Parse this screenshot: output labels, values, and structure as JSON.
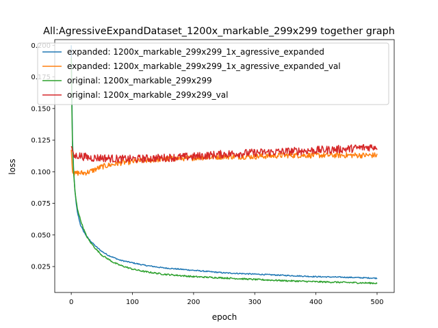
{
  "chart_data": {
    "type": "line",
    "title": "All:AgressiveExpandDataset_1200x_markable_299x299 together graph",
    "xlabel": "epoch",
    "ylabel": "loss",
    "xlim": [
      -27,
      528
    ],
    "ylim": [
      0.0045,
      0.2045
    ],
    "xticks": [
      0,
      100,
      200,
      300,
      400,
      500
    ],
    "xtick_labels": [
      "0",
      "100",
      "200",
      "300",
      "400",
      "500"
    ],
    "yticks": [
      0.025,
      0.05,
      0.075,
      0.1,
      0.125,
      0.15,
      0.175,
      0.2
    ],
    "ytick_labels": [
      "0.025",
      "0.050",
      "0.075",
      "0.100",
      "0.125",
      "0.150",
      "0.175",
      "0.200"
    ],
    "grid": false,
    "legend_position": "upper-left",
    "series": [
      {
        "name": "expanded: 1200x_markable_299x299_1x_agressive_expanded",
        "color": "#1f77b4",
        "points": [
          [
            0,
            0.2
          ],
          [
            1,
            0.16
          ],
          [
            2,
            0.125
          ],
          [
            4,
            0.1
          ],
          [
            6,
            0.085
          ],
          [
            8,
            0.075
          ],
          [
            10,
            0.068
          ],
          [
            15,
            0.058
          ],
          [
            20,
            0.053
          ],
          [
            25,
            0.049
          ],
          [
            30,
            0.046
          ],
          [
            40,
            0.041
          ],
          [
            50,
            0.037
          ],
          [
            60,
            0.034
          ],
          [
            70,
            0.032
          ],
          [
            80,
            0.03
          ],
          [
            100,
            0.028
          ],
          [
            120,
            0.026
          ],
          [
            150,
            0.024
          ],
          [
            200,
            0.022
          ],
          [
            250,
            0.02
          ],
          [
            300,
            0.019
          ],
          [
            350,
            0.018
          ],
          [
            400,
            0.017
          ],
          [
            450,
            0.0165
          ],
          [
            500,
            0.0158
          ]
        ]
      },
      {
        "name": "expanded: 1200x_markable_299x299_1x_agressive_expanded_val",
        "color": "#ff7f0e",
        "points": [
          [
            0,
            0.118
          ],
          [
            2,
            0.1
          ],
          [
            5,
            0.098
          ],
          [
            10,
            0.099
          ],
          [
            20,
            0.099
          ],
          [
            30,
            0.1
          ],
          [
            40,
            0.102
          ],
          [
            50,
            0.104
          ],
          [
            60,
            0.105
          ],
          [
            80,
            0.107
          ],
          [
            100,
            0.108
          ],
          [
            150,
            0.11
          ],
          [
            200,
            0.111
          ],
          [
            250,
            0.112
          ],
          [
            300,
            0.112
          ],
          [
            350,
            0.113
          ],
          [
            400,
            0.113
          ],
          [
            450,
            0.113
          ],
          [
            500,
            0.113
          ]
        ]
      },
      {
        "name": "original: 1200x_markable_299x299",
        "color": "#2ca02c",
        "points": [
          [
            0,
            0.19
          ],
          [
            1,
            0.15
          ],
          [
            2,
            0.12
          ],
          [
            4,
            0.098
          ],
          [
            6,
            0.085
          ],
          [
            8,
            0.077
          ],
          [
            10,
            0.071
          ],
          [
            15,
            0.062
          ],
          [
            20,
            0.055
          ],
          [
            25,
            0.049
          ],
          [
            30,
            0.045
          ],
          [
            40,
            0.039
          ],
          [
            50,
            0.034
          ],
          [
            60,
            0.031
          ],
          [
            70,
            0.028
          ],
          [
            80,
            0.026
          ],
          [
            100,
            0.023
          ],
          [
            120,
            0.021
          ],
          [
            150,
            0.019
          ],
          [
            200,
            0.017
          ],
          [
            250,
            0.016
          ],
          [
            300,
            0.0148
          ],
          [
            350,
            0.0138
          ],
          [
            400,
            0.013
          ],
          [
            450,
            0.0124
          ],
          [
            500,
            0.0118
          ]
        ]
      },
      {
        "name": "original: 1200x_markable_299x299_val",
        "color": "#d62728",
        "points": [
          [
            0,
            0.12
          ],
          [
            3,
            0.115
          ],
          [
            5,
            0.112
          ],
          [
            10,
            0.113
          ],
          [
            20,
            0.112
          ],
          [
            30,
            0.111
          ],
          [
            50,
            0.111
          ],
          [
            80,
            0.11
          ],
          [
            100,
            0.11
          ],
          [
            150,
            0.111
          ],
          [
            200,
            0.112
          ],
          [
            250,
            0.114
          ],
          [
            300,
            0.115
          ],
          [
            350,
            0.116
          ],
          [
            400,
            0.117
          ],
          [
            450,
            0.118
          ],
          [
            500,
            0.12
          ]
        ]
      }
    ]
  }
}
